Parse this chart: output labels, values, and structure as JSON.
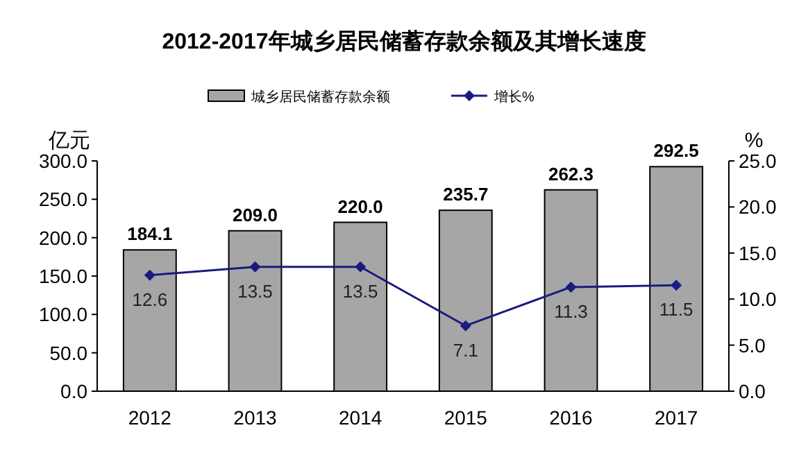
{
  "chart_data": {
    "type": "bar",
    "title": "2012-2017年城乡居民储蓄存款余额及其增长速度",
    "ylabel": "亿元",
    "y2label": "%",
    "categories": [
      "2012",
      "2013",
      "2014",
      "2015",
      "2016",
      "2017"
    ],
    "series": [
      {
        "name": "城乡居民储蓄存款余额",
        "color": "#a6a6a6",
        "values": [
          184.1,
          209.0,
          220.0,
          235.7,
          262.3,
          292.5
        ],
        "value_labels": [
          "184.1",
          "209.0",
          "220.0",
          "235.7",
          "262.3",
          "292.5"
        ]
      },
      {
        "name": "增长%",
        "type": "line",
        "axis": "y2",
        "color": "#1a1a80",
        "values": [
          12.6,
          13.5,
          13.5,
          7.1,
          11.3,
          11.5
        ],
        "value_labels": [
          "12.6",
          "13.5",
          "13.5",
          "7.1",
          "11.3",
          "11.5"
        ]
      }
    ],
    "ylim": [
      0,
      300
    ],
    "yticks": [
      {
        "value": 0,
        "label": "0.0"
      },
      {
        "value": 50,
        "label": "50.0"
      },
      {
        "value": 100,
        "label": "100.0"
      },
      {
        "value": 150,
        "label": "150.0"
      },
      {
        "value": 200,
        "label": "200.0"
      },
      {
        "value": 250,
        "label": "250.0"
      },
      {
        "value": 300,
        "label": "300.0"
      }
    ],
    "y2lim": [
      0,
      25
    ],
    "y2ticks": [
      {
        "value": 0,
        "label": "0.0"
      },
      {
        "value": 5,
        "label": "5.0"
      },
      {
        "value": 10,
        "label": "10.0"
      },
      {
        "value": 15,
        "label": "15.0"
      },
      {
        "value": 20,
        "label": "20.0"
      },
      {
        "value": 25,
        "label": "25.0"
      }
    ],
    "legend": "top",
    "marker": "diamond",
    "grid": false
  }
}
